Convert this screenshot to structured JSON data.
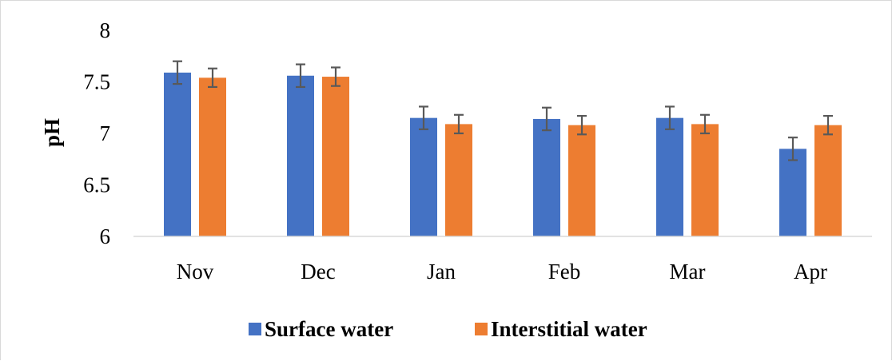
{
  "chart_data": {
    "type": "bar",
    "title": "",
    "xlabel": "",
    "ylabel": "pH",
    "categories": [
      "Nov",
      "Dec",
      "Jan",
      "Feb",
      "Mar",
      "Apr"
    ],
    "series": [
      {
        "name": "Surface water",
        "color": "#4472C4",
        "values": [
          7.59,
          7.56,
          7.15,
          7.14,
          7.15,
          6.85
        ],
        "error": [
          0.11,
          0.11,
          0.11,
          0.11,
          0.11,
          0.11
        ]
      },
      {
        "name": "Interstitial water",
        "color": "#ED7D31",
        "values": [
          7.54,
          7.55,
          7.09,
          7.08,
          7.09,
          7.08
        ],
        "error": [
          0.09,
          0.09,
          0.09,
          0.09,
          0.09,
          0.09
        ]
      }
    ],
    "ylim": [
      6,
      8
    ],
    "yticks": [
      "6",
      "6.5",
      "7",
      "7.5",
      "8"
    ],
    "grid": false,
    "legend_position": "bottom",
    "error_bar_color": "#595959",
    "axis_color": "#d9d9d9"
  }
}
